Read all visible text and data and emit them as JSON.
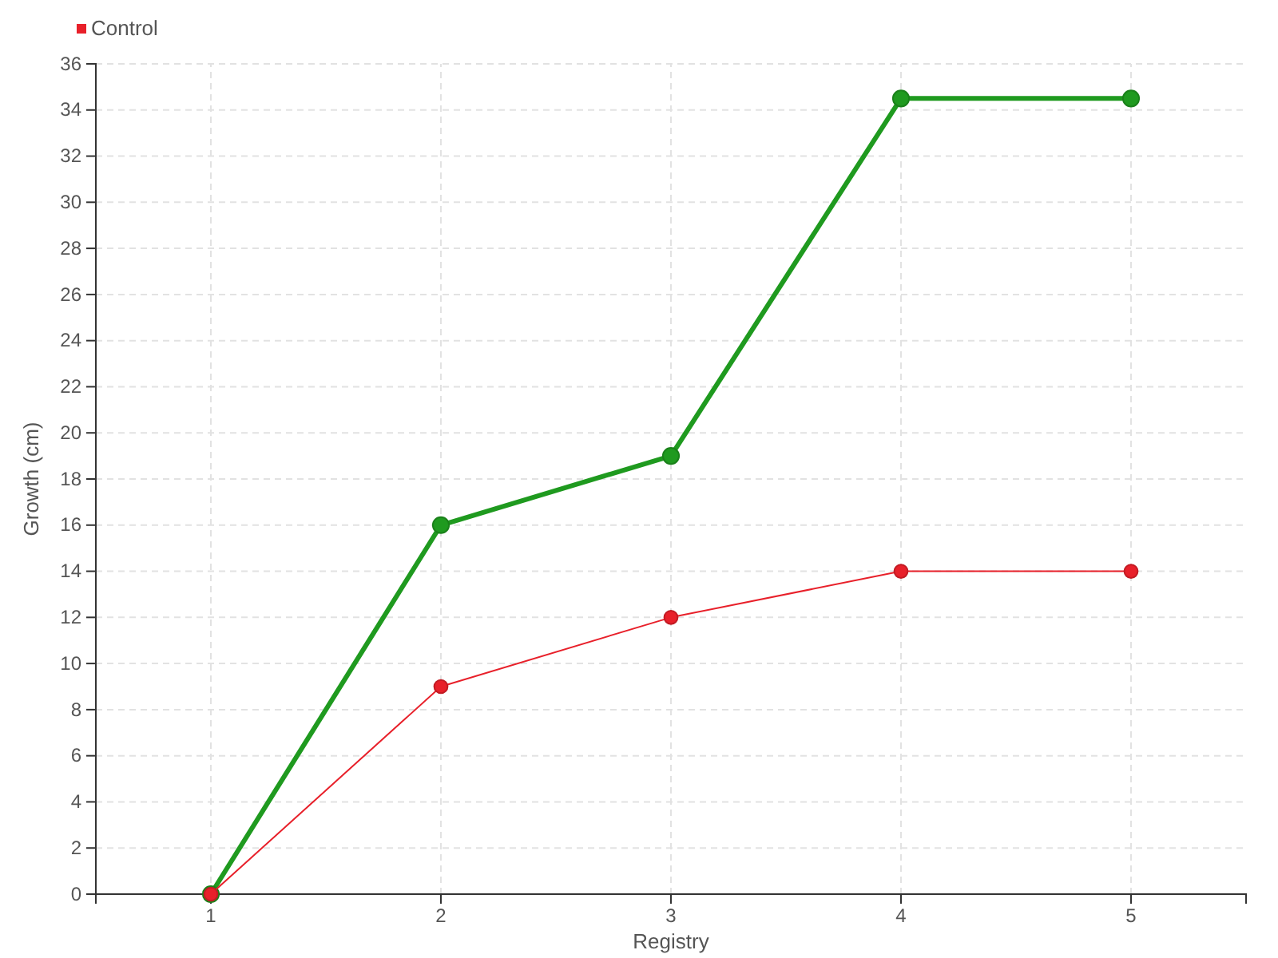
{
  "chart_data": {
    "type": "line",
    "xlabel": "Registry",
    "ylabel": "Growth (cm)",
    "x": [
      1,
      2,
      3,
      4,
      5
    ],
    "series": [
      {
        "color": "#1f9a1f",
        "values": [
          0,
          16,
          19,
          34.5,
          34.5
        ]
      },
      {
        "name": "Control",
        "color": "#e8202a",
        "values": [
          0,
          9,
          12,
          14,
          14
        ]
      }
    ],
    "xlim": [
      0.5,
      5.5
    ],
    "xticks": [
      1,
      2,
      3,
      4,
      5
    ],
    "ylim": [
      0,
      36
    ],
    "yticks": [
      0,
      2,
      4,
      6,
      8,
      10,
      12,
      14,
      16,
      18,
      20,
      22,
      24,
      26,
      28,
      30,
      32,
      34,
      36
    ],
    "grid": true,
    "legend": "top left",
    "marker": "circle",
    "line_style": "solid"
  }
}
